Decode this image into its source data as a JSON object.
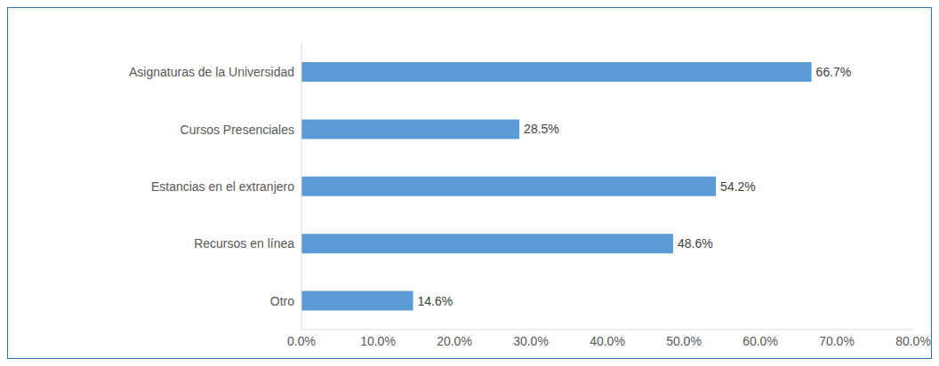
{
  "chart_data": {
    "type": "bar",
    "orientation": "horizontal",
    "categories": [
      "Asignaturas de la Universidad",
      "Cursos Presenciales",
      "Estancias en el extranjero",
      "Recursos en línea",
      "Otro"
    ],
    "values": [
      66.7,
      28.5,
      54.2,
      48.6,
      14.6
    ],
    "value_labels": [
      "66.7%",
      "28.5%",
      "54.2%",
      "48.6%",
      "14.6%"
    ],
    "color": "#5b9bd5",
    "xlim": [
      0,
      80
    ],
    "xticks": [
      {
        "value": 0,
        "label": "0.0%"
      },
      {
        "value": 10,
        "label": "10.0%"
      },
      {
        "value": 20,
        "label": "20.0%"
      },
      {
        "value": 30,
        "label": "30.0%"
      },
      {
        "value": 40,
        "label": "40.0%"
      },
      {
        "value": 50,
        "label": "50.0%"
      },
      {
        "value": 60,
        "label": "60.0%"
      },
      {
        "value": 70,
        "label": "70.0%"
      },
      {
        "value": 80,
        "label": "80.0%"
      }
    ],
    "grid": false,
    "data_labels": true
  }
}
